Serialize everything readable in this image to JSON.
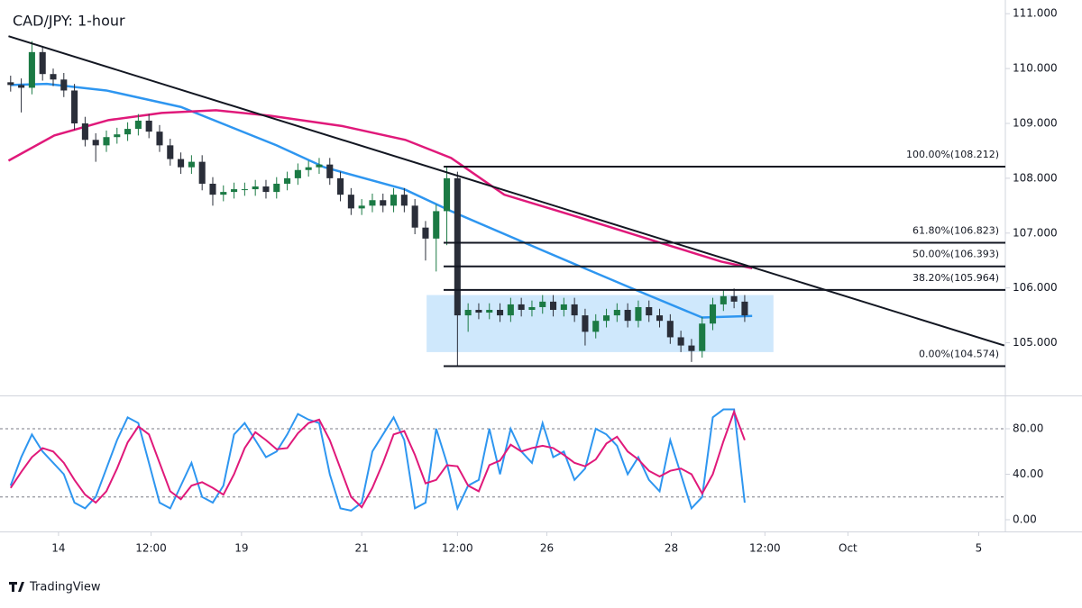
{
  "chart_data": [
    {
      "type": "candlestick",
      "title": "CAD/JPY: 1-hour",
      "up_color": "#1b7a44",
      "down_color": "#2a2e39",
      "open": [
        109.75,
        109.7,
        109.65,
        110.3,
        109.9,
        109.8,
        109.6,
        109.0,
        108.7,
        108.6,
        108.75,
        108.8,
        108.9,
        109.05,
        108.85,
        108.6,
        108.35,
        108.2,
        108.3,
        107.9,
        107.7,
        107.75,
        107.8,
        107.8,
        107.85,
        107.75,
        107.9,
        108.0,
        108.15,
        108.2,
        108.25,
        108.0,
        107.7,
        107.45,
        107.5,
        107.6,
        107.5,
        107.7,
        107.5,
        107.1,
        106.9,
        107.4,
        108.0,
        105.5,
        105.6,
        105.55,
        105.6,
        105.5,
        105.7,
        105.6,
        105.65,
        105.75,
        105.6,
        105.7,
        105.5,
        105.2,
        105.4,
        105.5,
        105.6,
        105.4,
        105.65,
        105.5,
        105.4,
        105.1,
        104.95,
        104.85,
        105.35,
        105.7,
        105.85,
        105.75
      ],
      "high": [
        109.87,
        109.82,
        110.5,
        110.4,
        110.0,
        109.92,
        109.72,
        109.12,
        108.82,
        108.87,
        108.92,
        109.02,
        109.17,
        109.17,
        108.97,
        108.72,
        108.47,
        108.42,
        108.42,
        108.02,
        107.87,
        107.92,
        107.92,
        107.97,
        107.97,
        108.02,
        108.12,
        108.27,
        108.32,
        108.37,
        108.37,
        108.12,
        107.82,
        107.62,
        107.72,
        107.72,
        107.82,
        107.82,
        107.62,
        107.22,
        107.52,
        108.21,
        108.12,
        105.72,
        105.72,
        105.72,
        105.72,
        105.82,
        105.82,
        105.77,
        105.87,
        105.87,
        105.82,
        105.82,
        105.62,
        105.52,
        105.62,
        105.72,
        105.72,
        105.77,
        105.77,
        105.62,
        105.52,
        105.22,
        105.07,
        105.47,
        105.82,
        105.97,
        105.99,
        105.87
      ],
      "low": [
        109.58,
        109.2,
        109.53,
        109.78,
        109.68,
        109.48,
        108.88,
        108.58,
        108.3,
        108.48,
        108.63,
        108.68,
        108.78,
        108.73,
        108.48,
        108.23,
        108.08,
        108.08,
        107.78,
        107.5,
        107.58,
        107.63,
        107.68,
        107.68,
        107.63,
        107.63,
        107.78,
        107.88,
        108.03,
        108.08,
        107.88,
        107.58,
        107.33,
        107.33,
        107.38,
        107.38,
        107.38,
        107.38,
        106.98,
        106.5,
        106.3,
        106.78,
        104.574,
        105.2,
        105.43,
        105.43,
        105.38,
        105.38,
        105.48,
        105.48,
        105.53,
        105.48,
        105.48,
        105.38,
        104.95,
        105.08,
        105.28,
        105.38,
        105.28,
        105.28,
        105.38,
        105.28,
        104.98,
        104.83,
        104.65,
        104.73,
        105.23,
        105.58,
        105.63,
        105.38
      ],
      "close": [
        109.7,
        109.65,
        110.3,
        109.9,
        109.8,
        109.6,
        109.0,
        108.7,
        108.6,
        108.75,
        108.8,
        108.9,
        109.05,
        108.85,
        108.6,
        108.35,
        108.2,
        108.3,
        107.9,
        107.7,
        107.75,
        107.8,
        107.8,
        107.85,
        107.75,
        107.9,
        108.0,
        108.15,
        108.2,
        108.25,
        108.0,
        107.7,
        107.45,
        107.5,
        107.6,
        107.5,
        107.7,
        107.5,
        107.1,
        106.9,
        107.4,
        108.0,
        105.5,
        105.6,
        105.55,
        105.6,
        105.5,
        105.7,
        105.6,
        105.65,
        105.75,
        105.6,
        105.7,
        105.5,
        105.2,
        105.4,
        105.5,
        105.6,
        105.4,
        105.65,
        105.5,
        105.4,
        105.1,
        104.95,
        104.85,
        105.35,
        105.7,
        105.85,
        105.75,
        105.5
      ],
      "series": [
        {
          "color": "#2e96f0",
          "x": [
            0,
            3.4,
            9,
            16,
            25,
            29.5,
            37,
            41.4,
            49.8,
            58.3,
            65,
            69.7
          ],
          "values": [
            109.7,
            109.72,
            109.6,
            109.3,
            108.6,
            108.2,
            107.8,
            107.4,
            106.7,
            106.0,
            105.46,
            105.49
          ]
        },
        {
          "color": "#e0197a",
          "x": [
            -0.2,
            4.1,
            9.2,
            14.2,
            19.3,
            24.4,
            31.2,
            37.1,
            41.4,
            46.4,
            53.2,
            60.8,
            66.8,
            69.7
          ],
          "values": [
            108.32,
            108.78,
            109.06,
            109.19,
            109.24,
            109.14,
            108.95,
            108.7,
            108.37,
            107.7,
            107.3,
            106.84,
            106.48,
            106.36
          ]
        }
      ],
      "trendline": {
        "color": "#131722",
        "x": [
          -0.2,
          93.4
        ],
        "values": [
          110.59,
          104.95
        ]
      },
      "fib_levels": [
        {
          "value": 108.212,
          "label": "100.00%(108.212)"
        },
        {
          "value": 106.823,
          "label": "61.80%(106.823)"
        },
        {
          "value": 106.393,
          "label": "50.00%(106.393)"
        },
        {
          "value": 105.964,
          "label": "38.20%(105.964)"
        },
        {
          "value": 104.574,
          "label": "0.00%(104.574)"
        }
      ],
      "fib_start_x": 40.7,
      "range_box": {
        "color": "#bbdefb",
        "x": [
          39.1,
          71.7
        ],
        "values": [
          104.83,
          105.87
        ]
      },
      "xlim": [
        -1,
        93.5
      ],
      "ylim": [
        104.04,
        111.25
      ],
      "yticks": [
        {
          "value": 105,
          "label": "105.000"
        },
        {
          "value": 106,
          "label": "106.000"
        },
        {
          "value": 107,
          "label": "107.000"
        },
        {
          "value": 108,
          "label": "108.000"
        },
        {
          "value": 109,
          "label": "109.000"
        },
        {
          "value": 110,
          "label": "110.000"
        },
        {
          "value": 111,
          "label": "111.000"
        }
      ]
    },
    {
      "type": "line",
      "series": [
        {
          "color": "#2e96f0",
          "values": [
            30,
            55,
            75,
            60,
            50,
            40,
            15,
            10,
            20,
            45,
            70,
            90,
            85,
            50,
            15,
            10,
            30,
            50,
            20,
            15,
            30,
            75,
            85,
            70,
            55,
            60,
            75,
            93,
            88,
            85,
            40,
            10,
            8,
            15,
            60,
            75,
            90,
            70,
            10,
            15,
            80,
            50,
            10,
            30,
            35,
            80,
            40,
            80,
            60,
            50,
            85,
            55,
            60,
            35,
            45,
            80,
            75,
            65,
            40,
            55,
            35,
            25,
            70,
            40,
            10,
            20,
            90,
            97,
            97,
            15
          ]
        },
        {
          "color": "#e0197a",
          "values": [
            28,
            42,
            55,
            63,
            60,
            50,
            35,
            22,
            15,
            25,
            45,
            68,
            82,
            75,
            50,
            25,
            18,
            30,
            33,
            28,
            22,
            40,
            63,
            77,
            70,
            62,
            63,
            76,
            85,
            88,
            70,
            45,
            20,
            11,
            28,
            50,
            75,
            78,
            57,
            32,
            35,
            48,
            47,
            30,
            25,
            48,
            52,
            66,
            60,
            63,
            65,
            63,
            57,
            50,
            47,
            53,
            67,
            73,
            60,
            53,
            43,
            38,
            43,
            45,
            40,
            23,
            40,
            69,
            95,
            70
          ]
        }
      ],
      "levels": [
        80,
        20
      ],
      "xlim": [
        -1,
        93.5
      ],
      "xticks": [
        {
          "value": 4.5,
          "label": "14"
        },
        {
          "value": 13.2,
          "label": "12:00"
        },
        {
          "value": 21.7,
          "label": "19"
        },
        {
          "value": 33,
          "label": "21"
        },
        {
          "value": 42,
          "label": "12:00"
        },
        {
          "value": 50.4,
          "label": "26"
        },
        {
          "value": 62.1,
          "label": "28"
        },
        {
          "value": 70.9,
          "label": "12:00"
        },
        {
          "value": 78.7,
          "label": "Oct"
        },
        {
          "value": 91,
          "label": "5"
        }
      ],
      "ylim": [
        -10.3,
        108.5
      ],
      "yticks": [
        {
          "value": 0,
          "label": "0.00"
        },
        {
          "value": 40,
          "label": "40.00"
        },
        {
          "value": 80,
          "label": "80.00"
        }
      ]
    }
  ],
  "footer": "TradingView"
}
